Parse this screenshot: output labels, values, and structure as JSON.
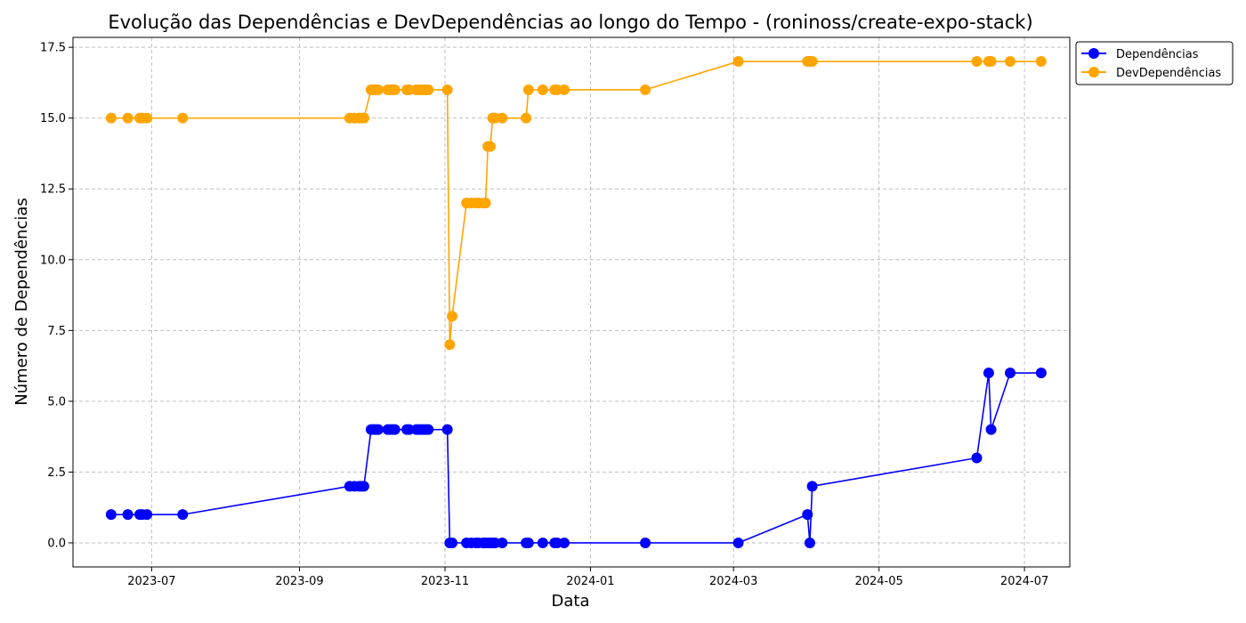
{
  "chart_data": {
    "type": "line",
    "title": "Evolução das Dependências e DevDependências ao longo do Tempo - (roninoss/create-expo-stack)",
    "xlabel": "Data",
    "ylabel": "Número de Dependências",
    "x_domain": [
      "2023-05-29",
      "2024-07-20"
    ],
    "ylim": [
      -0.85,
      17.85
    ],
    "grid": true,
    "legend_position": "top-right outside",
    "x_ticks": [
      {
        "date": "2023-07-01",
        "label": "2023-07"
      },
      {
        "date": "2023-09-01",
        "label": "2023-09"
      },
      {
        "date": "2023-11-01",
        "label": "2023-11"
      },
      {
        "date": "2024-01-01",
        "label": "2024-01"
      },
      {
        "date": "2024-03-01",
        "label": "2024-03"
      },
      {
        "date": "2024-05-01",
        "label": "2024-05"
      },
      {
        "date": "2024-07-01",
        "label": "2024-07"
      }
    ],
    "y_ticks": [
      {
        "value": 0,
        "label": "0.0"
      },
      {
        "value": 2.5,
        "label": "2.5"
      },
      {
        "value": 5,
        "label": "5.0"
      },
      {
        "value": 7.5,
        "label": "7.5"
      },
      {
        "value": 10,
        "label": "10.0"
      },
      {
        "value": 12.5,
        "label": "12.5"
      },
      {
        "value": 15,
        "label": "15.0"
      },
      {
        "value": 17.5,
        "label": "17.5"
      }
    ],
    "series": [
      {
        "name": "Dependências",
        "color": "#0000ff",
        "points": [
          [
            "2023-06-14",
            1
          ],
          [
            "2023-06-21",
            1
          ],
          [
            "2023-06-26",
            1
          ],
          [
            "2023-06-27",
            1
          ],
          [
            "2023-06-29",
            1
          ],
          [
            "2023-07-14",
            1
          ],
          [
            "2023-09-22",
            2
          ],
          [
            "2023-09-24",
            2
          ],
          [
            "2023-09-26",
            2
          ],
          [
            "2023-09-27",
            2
          ],
          [
            "2023-09-28",
            2
          ],
          [
            "2023-10-01",
            4
          ],
          [
            "2023-10-02",
            4
          ],
          [
            "2023-10-03",
            4
          ],
          [
            "2023-10-04",
            4
          ],
          [
            "2023-10-08",
            4
          ],
          [
            "2023-10-09",
            4
          ],
          [
            "2023-10-10",
            4
          ],
          [
            "2023-10-11",
            4
          ],
          [
            "2023-10-16",
            4
          ],
          [
            "2023-10-17",
            4
          ],
          [
            "2023-10-20",
            4
          ],
          [
            "2023-10-21",
            4
          ],
          [
            "2023-10-22",
            4
          ],
          [
            "2023-10-23",
            4
          ],
          [
            "2023-10-24",
            4
          ],
          [
            "2023-10-25",
            4
          ],
          [
            "2023-11-02",
            4
          ],
          [
            "2023-11-03",
            0
          ],
          [
            "2023-11-04",
            0
          ],
          [
            "2023-11-10",
            0
          ],
          [
            "2023-11-12",
            0
          ],
          [
            "2023-11-14",
            0
          ],
          [
            "2023-11-15",
            0
          ],
          [
            "2023-11-17",
            0
          ],
          [
            "2023-11-18",
            0
          ],
          [
            "2023-11-19",
            0
          ],
          [
            "2023-11-20",
            0
          ],
          [
            "2023-11-21",
            0
          ],
          [
            "2023-11-22",
            0
          ],
          [
            "2023-11-25",
            0
          ],
          [
            "2023-12-05",
            0
          ],
          [
            "2023-12-06",
            0
          ],
          [
            "2023-12-12",
            0
          ],
          [
            "2023-12-17",
            0
          ],
          [
            "2023-12-18",
            0
          ],
          [
            "2023-12-21",
            0
          ],
          [
            "2024-01-24",
            0
          ],
          [
            "2024-03-03",
            0
          ],
          [
            "2024-04-01",
            1
          ],
          [
            "2024-04-02",
            0
          ],
          [
            "2024-04-03",
            2
          ],
          [
            "2024-06-11",
            3
          ],
          [
            "2024-06-16",
            6
          ],
          [
            "2024-06-17",
            4
          ],
          [
            "2024-06-25",
            6
          ],
          [
            "2024-07-08",
            6
          ]
        ]
      },
      {
        "name": "DevDependências",
        "color": "#ffa500",
        "points": [
          [
            "2023-06-14",
            15
          ],
          [
            "2023-06-21",
            15
          ],
          [
            "2023-06-26",
            15
          ],
          [
            "2023-06-27",
            15
          ],
          [
            "2023-06-29",
            15
          ],
          [
            "2023-07-14",
            15
          ],
          [
            "2023-09-22",
            15
          ],
          [
            "2023-09-24",
            15
          ],
          [
            "2023-09-26",
            15
          ],
          [
            "2023-09-27",
            15
          ],
          [
            "2023-09-28",
            15
          ],
          [
            "2023-10-01",
            16
          ],
          [
            "2023-10-02",
            16
          ],
          [
            "2023-10-03",
            16
          ],
          [
            "2023-10-04",
            16
          ],
          [
            "2023-10-08",
            16
          ],
          [
            "2023-10-09",
            16
          ],
          [
            "2023-10-10",
            16
          ],
          [
            "2023-10-11",
            16
          ],
          [
            "2023-10-16",
            16
          ],
          [
            "2023-10-17",
            16
          ],
          [
            "2023-10-20",
            16
          ],
          [
            "2023-10-21",
            16
          ],
          [
            "2023-10-22",
            16
          ],
          [
            "2023-10-23",
            16
          ],
          [
            "2023-10-24",
            16
          ],
          [
            "2023-10-25",
            16
          ],
          [
            "2023-11-02",
            16
          ],
          [
            "2023-11-03",
            7
          ],
          [
            "2023-11-04",
            8
          ],
          [
            "2023-11-10",
            12
          ],
          [
            "2023-11-12",
            12
          ],
          [
            "2023-11-14",
            12
          ],
          [
            "2023-11-15",
            12
          ],
          [
            "2023-11-17",
            12
          ],
          [
            "2023-11-18",
            12
          ],
          [
            "2023-11-19",
            14
          ],
          [
            "2023-11-20",
            14
          ],
          [
            "2023-11-21",
            15
          ],
          [
            "2023-11-22",
            15
          ],
          [
            "2023-11-25",
            15
          ],
          [
            "2023-12-05",
            15
          ],
          [
            "2023-12-06",
            16
          ],
          [
            "2023-12-12",
            16
          ],
          [
            "2023-12-17",
            16
          ],
          [
            "2023-12-18",
            16
          ],
          [
            "2023-12-21",
            16
          ],
          [
            "2024-01-24",
            16
          ],
          [
            "2024-03-03",
            17
          ],
          [
            "2024-04-01",
            17
          ],
          [
            "2024-04-02",
            17
          ],
          [
            "2024-04-03",
            17
          ],
          [
            "2024-06-11",
            17
          ],
          [
            "2024-06-16",
            17
          ],
          [
            "2024-06-17",
            17
          ],
          [
            "2024-06-25",
            17
          ],
          [
            "2024-07-08",
            17
          ]
        ]
      }
    ]
  }
}
